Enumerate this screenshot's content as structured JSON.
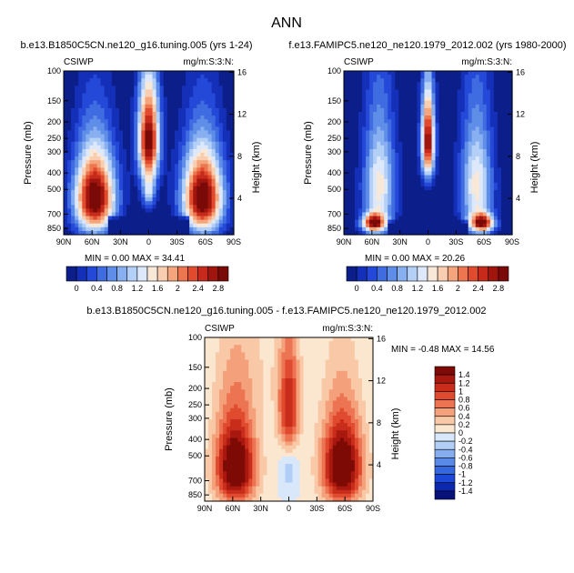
{
  "figure": {
    "title": "ANN",
    "height_label": "Height (km)"
  },
  "colorscales": {
    "abs": [
      "#0c1e8a",
      "#1530b8",
      "#2448d8",
      "#3f6ce0",
      "#5f8ee8",
      "#88b0f0",
      "#b4d0f6",
      "#dde9fa",
      "#f8e8d8",
      "#f9cdb0",
      "#f4a57c",
      "#ec7650",
      "#e14a2c",
      "#c62a1a",
      "#a0160f",
      "#7a0a08"
    ],
    "diff": [
      "#08107a",
      "#0c28b0",
      "#1c48d8",
      "#3468e0",
      "#5a8ae8",
      "#86acf0",
      "#b0cef6",
      "#d8e8fa",
      "#fbe6cf",
      "#f9c8a6",
      "#f4a07a",
      "#ec7452",
      "#e04a2e",
      "#c82c1a",
      "#a8180e",
      "#7e0a06"
    ]
  },
  "chart_data": [
    {
      "type": "heatmap",
      "name": "model",
      "title": "b.e13.B1850C5CN.ne120_g16.tuning.005 (yrs 1-24)",
      "left_label": "CSIWP",
      "right_label": "mg/m:S:3:N:",
      "ylabel": "Pressure (mb)",
      "xlabel": "",
      "x_ticks": [
        "90N",
        "60N",
        "30N",
        "0",
        "30S",
        "60S",
        "90S"
      ],
      "y_ticks": [
        100,
        150,
        200,
        250,
        300,
        400,
        500,
        700,
        850
      ],
      "height_ticks": [
        16,
        12,
        8,
        4
      ],
      "min_text": "MIN =   0.00   MAX =  34.41",
      "colorbar_labels": [
        "0",
        "0.4",
        "0.8",
        "1.2",
        "1.6",
        "2",
        "2.4",
        "2.8"
      ],
      "scale": "abs",
      "levels": [
        0,
        0.2,
        0.4,
        0.6,
        0.8,
        1.0,
        1.2,
        1.4,
        1.6,
        1.8,
        2.0,
        2.2,
        2.4,
        2.6,
        2.8,
        3.0
      ],
      "features": [
        {
          "lat": 57,
          "p": 560,
          "sigma_lat": 15,
          "sigma_p": 220,
          "amp": 3.4
        },
        {
          "lat": -57,
          "p": 560,
          "sigma_lat": 15,
          "sigma_p": 220,
          "amp": 3.4
        },
        {
          "lat": 0,
          "p": 255,
          "sigma_lat": 8,
          "sigma_p": 120,
          "amp": 3.2
        },
        {
          "lat": 0,
          "p": 520,
          "sigma_lat": 5,
          "sigma_p": 90,
          "amp": 1.2
        }
      ],
      "low_boundary": 700
    },
    {
      "type": "heatmap",
      "name": "obs",
      "title": "f.e13.FAMIPC5.ne120_ne120.1979_2012.002 (yrs 1980-2000)",
      "left_label": "CSIWP",
      "right_label": "mg/m:S:3:N:",
      "ylabel": "Pressure (mb)",
      "xlabel": "",
      "x_ticks": [
        "90N",
        "60N",
        "30N",
        "0",
        "30S",
        "60S",
        "90S"
      ],
      "y_ticks": [
        100,
        150,
        200,
        250,
        300,
        400,
        500,
        700,
        850
      ],
      "height_ticks": [
        16,
        12,
        8,
        4
      ],
      "min_text": "MIN =   0.00   MAX =  20.26",
      "colorbar_labels": [
        "0",
        "0.4",
        "0.8",
        "1.2",
        "1.6",
        "2",
        "2.4",
        "2.8"
      ],
      "scale": "abs",
      "levels": [
        0,
        0.2,
        0.4,
        0.6,
        0.8,
        1.0,
        1.2,
        1.4,
        1.6,
        1.8,
        2.0,
        2.2,
        2.4,
        2.6,
        2.8,
        3.0
      ],
      "features": [
        {
          "lat": 52,
          "p": 480,
          "sigma_lat": 12,
          "sigma_p": 260,
          "amp": 1.7
        },
        {
          "lat": -52,
          "p": 480,
          "sigma_lat": 12,
          "sigma_p": 260,
          "amp": 1.7
        },
        {
          "lat": 58,
          "p": 790,
          "sigma_lat": 9,
          "sigma_p": 70,
          "amp": 2.6
        },
        {
          "lat": -58,
          "p": 790,
          "sigma_lat": 9,
          "sigma_p": 70,
          "amp": 2.6
        },
        {
          "lat": 0,
          "p": 260,
          "sigma_lat": 5,
          "sigma_p": 110,
          "amp": 3.1
        }
      ],
      "low_boundary": 740
    },
    {
      "type": "heatmap",
      "name": "diff",
      "title": "b.e13.B1850C5CN.ne120_g16.tuning.005 - f.e13.FAMIPC5.ne120_ne120.1979_2012.002",
      "left_label": "CSIWP",
      "right_label": "mg/m:S:3:N:",
      "ylabel": "Pressure (mb)",
      "xlabel": "",
      "x_ticks": [
        "90N",
        "60N",
        "30N",
        "0",
        "30S",
        "60S",
        "90S"
      ],
      "y_ticks": [
        100,
        150,
        200,
        250,
        300,
        400,
        500,
        700,
        850
      ],
      "height_ticks": [
        16,
        12,
        8,
        4
      ],
      "min_text": "MIN =  -0.48   MAX =  14.56",
      "colorbar_labels": [
        "1.4",
        "1.2",
        "1",
        "0.8",
        "0.6",
        "0.4",
        "0.2",
        "0",
        "-0.2",
        "-0.4",
        "-0.6",
        "-0.8",
        "-1",
        "-1.2",
        "-1.4"
      ],
      "scale": "diff",
      "levels": [
        -1.4,
        -1.2,
        -1.0,
        -0.8,
        -0.6,
        -0.4,
        -0.2,
        0,
        0.2,
        0.4,
        0.6,
        0.8,
        1.0,
        1.2,
        1.4
      ],
      "features": [
        {
          "lat": 57,
          "p": 580,
          "sigma_lat": 15,
          "sigma_p": 240,
          "amp": 1.9
        },
        {
          "lat": -57,
          "p": 580,
          "sigma_lat": 15,
          "sigma_p": 240,
          "amp": 1.9
        },
        {
          "lat": 0,
          "p": 260,
          "sigma_lat": 8,
          "sigma_p": 130,
          "amp": 1.2
        },
        {
          "lat": 0,
          "p": 620,
          "sigma_lat": 6,
          "sigma_p": 110,
          "amp": -0.35
        },
        {
          "lat": 40,
          "p": 150,
          "sigma_lat": 30,
          "sigma_p": 90,
          "amp": 0.15
        }
      ],
      "low_boundary": 9999
    }
  ]
}
